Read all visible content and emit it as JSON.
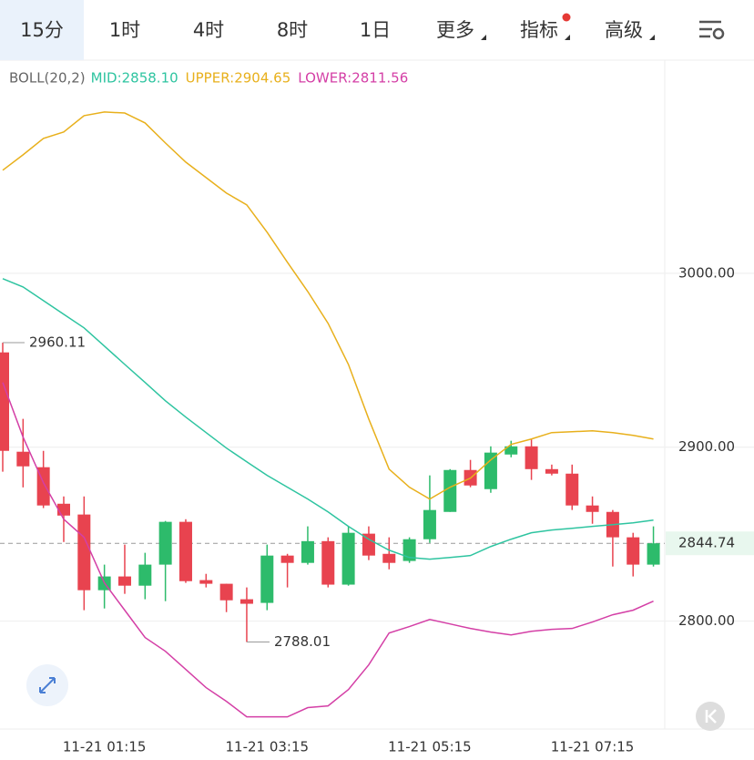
{
  "toolbar": {
    "tabs": [
      "15分",
      "1时",
      "4时",
      "8时",
      "1日",
      "更多",
      "指标",
      "高级"
    ],
    "active": 0
  },
  "chart_data": {
    "type": "candlestick",
    "indicator": "BOLL(20,2)",
    "categories": [
      null,
      null,
      null,
      null,
      null,
      "11-21 01:15",
      null,
      null,
      null,
      null,
      null,
      null,
      null,
      "11-21 03:15",
      null,
      null,
      null,
      null,
      null,
      null,
      null,
      "11-21 05:15",
      null,
      null,
      null,
      null,
      null,
      null,
      null,
      "11-21 07:15",
      null,
      null,
      null
    ],
    "open": [
      2954.5,
      2897.4,
      2888.5,
      2867.5,
      2861.3,
      2817.8,
      2825.7,
      2820.4,
      2832.5,
      2857.1,
      2823.6,
      2821.5,
      2812.6,
      2810.5,
      2837.7,
      2833.5,
      2846.0,
      2821.0,
      2850.3,
      2838.7,
      2834.6,
      2847.1,
      2862.8,
      2886.9,
      2875.9,
      2895.8,
      2900.5,
      2887.4,
      2884.8,
      2866.5,
      2862.8,
      2848.2,
      2832.5
    ],
    "high": [
      2960.11,
      2916.3,
      2897.9,
      2871.7,
      2871.7,
      2832.5,
      2844.0,
      2839.3,
      2857.6,
      2858.6,
      2827.2,
      2821.5,
      2819.4,
      2844.0,
      2838.7,
      2854.5,
      2848.2,
      2854.5,
      2854.5,
      2848.2,
      2848.2,
      2883.8,
      2887.4,
      2892.7,
      2900.5,
      2903.7,
      2904.7,
      2890.0,
      2890.0,
      2871.7,
      2863.9,
      2850.8,
      2854.5
    ],
    "low": [
      2885.9,
      2876.9,
      2865.0,
      2845.5,
      2806.3,
      2807.3,
      2815.7,
      2812.6,
      2811.5,
      2822.0,
      2819.4,
      2805.2,
      2788.01,
      2806.3,
      2819.4,
      2832.5,
      2819.4,
      2820.4,
      2835.1,
      2829.8,
      2833.5,
      2845.0,
      2862.8,
      2877.0,
      2873.8,
      2894.2,
      2881.2,
      2883.8,
      2863.9,
      2856.0,
      2831.4,
      2825.7,
      2831.4
    ],
    "close": [
      2897.9,
      2889.0,
      2866.5,
      2860.7,
      2817.8,
      2825.7,
      2820.4,
      2832.5,
      2857.1,
      2823.0,
      2821.5,
      2812.0,
      2810.0,
      2837.7,
      2833.5,
      2846.0,
      2821.0,
      2850.8,
      2837.7,
      2833.5,
      2847.1,
      2863.9,
      2886.9,
      2878.0,
      2896.9,
      2900.5,
      2887.4,
      2884.8,
      2866.5,
      2862.8,
      2848.2,
      2832.5,
      2844.74
    ],
    "up_color": "#2dbb6b",
    "down_color": "#e8434f",
    "lines": [
      {
        "name": "MID:2858.10",
        "color": "#2ec4a0",
        "values": [
          2996.9,
          2992.1,
          2984.3,
          2976.4,
          2968.6,
          2958.1,
          2947.6,
          2937.2,
          2926.7,
          2917.3,
          2908.4,
          2899.5,
          2891.6,
          2883.8,
          2877.0,
          2870.2,
          2862.8,
          2854.5,
          2847.1,
          2840.8,
          2836.6,
          2835.6,
          2836.6,
          2837.7,
          2842.9,
          2847.1,
          2850.8,
          2852.4,
          2853.4,
          2854.5,
          2855.5,
          2856.5,
          2858.1
        ]
      },
      {
        "name": "UPPER:2904.65",
        "color": "#e8b01c",
        "values": [
          3059.2,
          3068.1,
          3077.5,
          3081.2,
          3090.6,
          3092.7,
          3092.1,
          3086.4,
          3074.9,
          3063.9,
          3055.0,
          3046.1,
          3039.3,
          3023.6,
          3006.3,
          2989.5,
          2971.2,
          2947.6,
          2916.2,
          2887.4,
          2877.0,
          2870.2,
          2877.0,
          2882.2,
          2892.7,
          2901.6,
          2904.7,
          2908.4,
          2908.9,
          2909.4,
          2908.4,
          2906.8,
          2904.7
        ]
      },
      {
        "name": "LOWER:2811.56",
        "color": "#d43fa6",
        "values": [
          2937.2,
          2905.8,
          2879.6,
          2858.6,
          2848.2,
          2822.0,
          2806.3,
          2790.6,
          2782.7,
          2772.3,
          2761.8,
          2753.9,
          2745.0,
          2745.0,
          2745.0,
          2750.3,
          2751.3,
          2760.7,
          2774.9,
          2793.2,
          2796.9,
          2801.0,
          2798.4,
          2795.8,
          2793.7,
          2792.1,
          2794.2,
          2795.3,
          2795.8,
          2799.5,
          2803.7,
          2806.3,
          2811.5
        ]
      }
    ],
    "high_label": 2960.11,
    "low_label": 2788.01,
    "last_price": 2844.74,
    "ylim": [
      2738,
      3122.5
    ],
    "yticks": [
      {
        "value": 2800,
        "label": "2800.00"
      },
      {
        "value": 2900,
        "label": "2900.00"
      },
      {
        "value": 3000,
        "label": "3000.00"
      }
    ],
    "grid": true
  }
}
